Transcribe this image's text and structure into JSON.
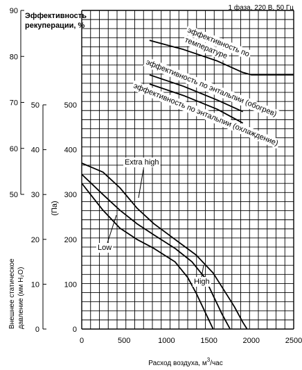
{
  "chart_data": {
    "type": "line",
    "title": "Эффективность рекуперации, %",
    "supply_note": "1 фаза, 220 В, 50 Гц",
    "xlabel": "Расход воздуха, м³/час",
    "xlabel_main": "Расход воздуха, м",
    "xlabel_sup": "3",
    "xlabel_tail": "/час",
    "xlim": [
      0,
      2500
    ],
    "x_ticks": [
      "0",
      "500",
      "1000",
      "1500",
      "2000",
      "2500"
    ],
    "efficiency_axis": {
      "label": "Эффективность рекуперации, %",
      "label_line1": "Эффективность",
      "label_line2": "рекуперации, %",
      "range": [
        50,
        90
      ],
      "ticks": [
        "90",
        "80",
        "70",
        "60",
        "50"
      ]
    },
    "pressure_mm_axis": {
      "label": "Внешнее статическое давление (мм H₂O)",
      "label_line1": "Внешнее статическое",
      "label_line2": "давление (мм H₂O)",
      "range": [
        0,
        50
      ],
      "ticks": [
        "50",
        "40",
        "30",
        "20",
        "10",
        "0"
      ]
    },
    "pressure_pa_axis": {
      "label": "(Па)",
      "range": [
        0,
        500
      ],
      "ticks": [
        "500",
        "400",
        "300",
        "200",
        "100",
        "0"
      ]
    },
    "efficiency_series": [
      {
        "name": "эффективность по температуре",
        "label_line1": "эффективность по",
        "label_line2": "температуре",
        "x": [
          800,
          1200,
          1600,
          1900,
          2000,
          2500
        ],
        "y": [
          83.5,
          81.5,
          79,
          76.5,
          76,
          76
        ]
      },
      {
        "name": "эффективность по энтальпии (обогрев)",
        "x": [
          800,
          1200,
          1600,
          1900
        ],
        "y": [
          76,
          73.5,
          70.5,
          68
        ]
      },
      {
        "name": "эффективность по энтальпии (охлаждение)",
        "x": [
          800,
          1200,
          1600,
          1900
        ],
        "y": [
          74,
          71.5,
          68.5,
          65.5
        ]
      }
    ],
    "pressure_series": [
      {
        "name": "Extra high",
        "x": [
          0,
          250,
          450,
          650,
          850,
          1100,
          1350,
          1550,
          1700,
          1800,
          1900,
          1950
        ],
        "y": [
          370,
          350,
          315,
          270,
          235,
          200,
          165,
          125,
          80,
          50,
          15,
          0
        ]
      },
      {
        "name": "High",
        "x": [
          0,
          250,
          450,
          650,
          850,
          1100,
          1300,
          1450,
          1550,
          1650,
          1750
        ],
        "y": [
          345,
          300,
          265,
          235,
          210,
          180,
          150,
          115,
          75,
          35,
          0
        ]
      },
      {
        "name": "Low",
        "x": [
          0,
          250,
          450,
          650,
          850,
          1100,
          1250,
          1350,
          1450,
          1550
        ],
        "y": [
          325,
          265,
          225,
          200,
          180,
          150,
          115,
          80,
          40,
          0
        ]
      }
    ],
    "grid": true
  }
}
